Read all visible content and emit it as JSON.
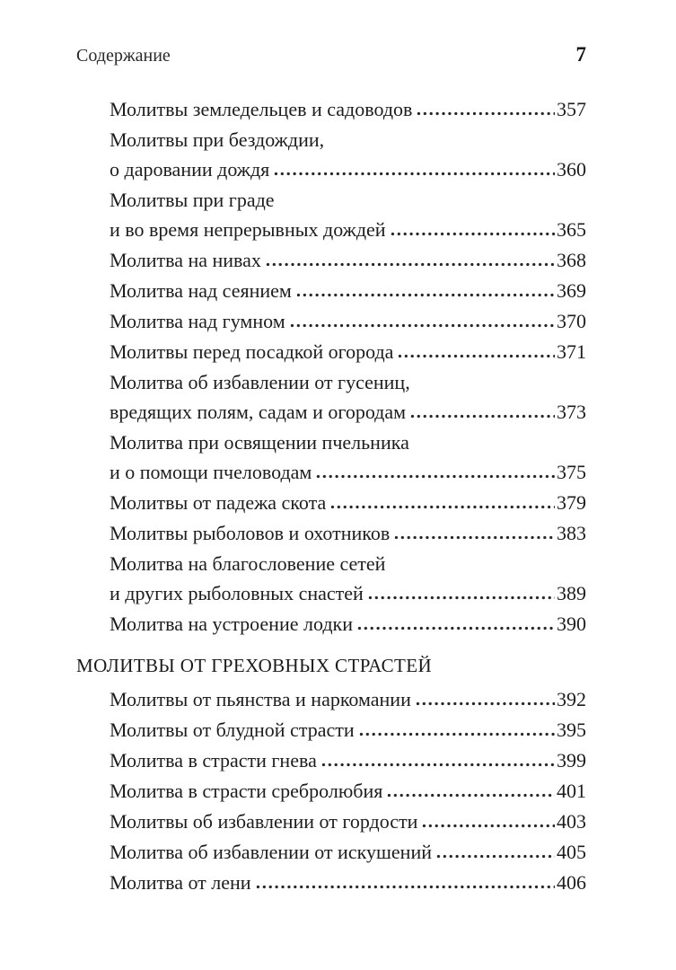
{
  "page": {
    "header": {
      "title": "Содержание",
      "page_number": "7"
    }
  },
  "toc": {
    "sections": [
      {
        "heading": "",
        "entries": [
          {
            "title_lines": [
              "Молитвы земледельцев и садоводов"
            ],
            "page": "357"
          },
          {
            "title_lines": [
              "Молитвы при бездождии,",
              "о даровании дождя"
            ],
            "page": "360"
          },
          {
            "title_lines": [
              "Молитвы при граде",
              "и во время непрерывных дождей"
            ],
            "page": "365"
          },
          {
            "title_lines": [
              "Молитва на нивах"
            ],
            "page": "368"
          },
          {
            "title_lines": [
              "Молитва над сеянием"
            ],
            "page": "369"
          },
          {
            "title_lines": [
              "Молитва над гумном"
            ],
            "page": "370"
          },
          {
            "title_lines": [
              "Молитвы перед посадкой огорода"
            ],
            "page": "371"
          },
          {
            "title_lines": [
              "Молитва об избавлении от гусениц,",
              "вредящих полям, садам и огородам"
            ],
            "page": "373"
          },
          {
            "title_lines": [
              "Молитва при освящении пчельника",
              "и о помощи пчеловодам"
            ],
            "page": "375"
          },
          {
            "title_lines": [
              "Молитвы от падежа скота"
            ],
            "page": "379"
          },
          {
            "title_lines": [
              "Молитвы рыболовов и охотников"
            ],
            "page": "383"
          },
          {
            "title_lines": [
              "Молитва на благословение сетей",
              "и других рыболовных снастей"
            ],
            "page": "389"
          },
          {
            "title_lines": [
              "Молитва на устроение лодки"
            ],
            "page": "390"
          }
        ]
      },
      {
        "heading": "МОЛИТВЫ ОТ ГРЕХОВНЫХ СТРАСТЕЙ",
        "entries": [
          {
            "title_lines": [
              "Молитвы от пьянства и наркомании"
            ],
            "page": "392"
          },
          {
            "title_lines": [
              "Молитвы от блудной страсти"
            ],
            "page": "395"
          },
          {
            "title_lines": [
              "Молитва в страсти гнева"
            ],
            "page": "399"
          },
          {
            "title_lines": [
              "Молитва в страсти сребролюбия"
            ],
            "page": "401"
          },
          {
            "title_lines": [
              "Молитвы об избавлении от гордости"
            ],
            "page": "403"
          },
          {
            "title_lines": [
              "Молитва об избавлении от искушений"
            ],
            "page": "405"
          },
          {
            "title_lines": [
              "Молитва от лени"
            ],
            "page": "406"
          }
        ]
      }
    ]
  }
}
